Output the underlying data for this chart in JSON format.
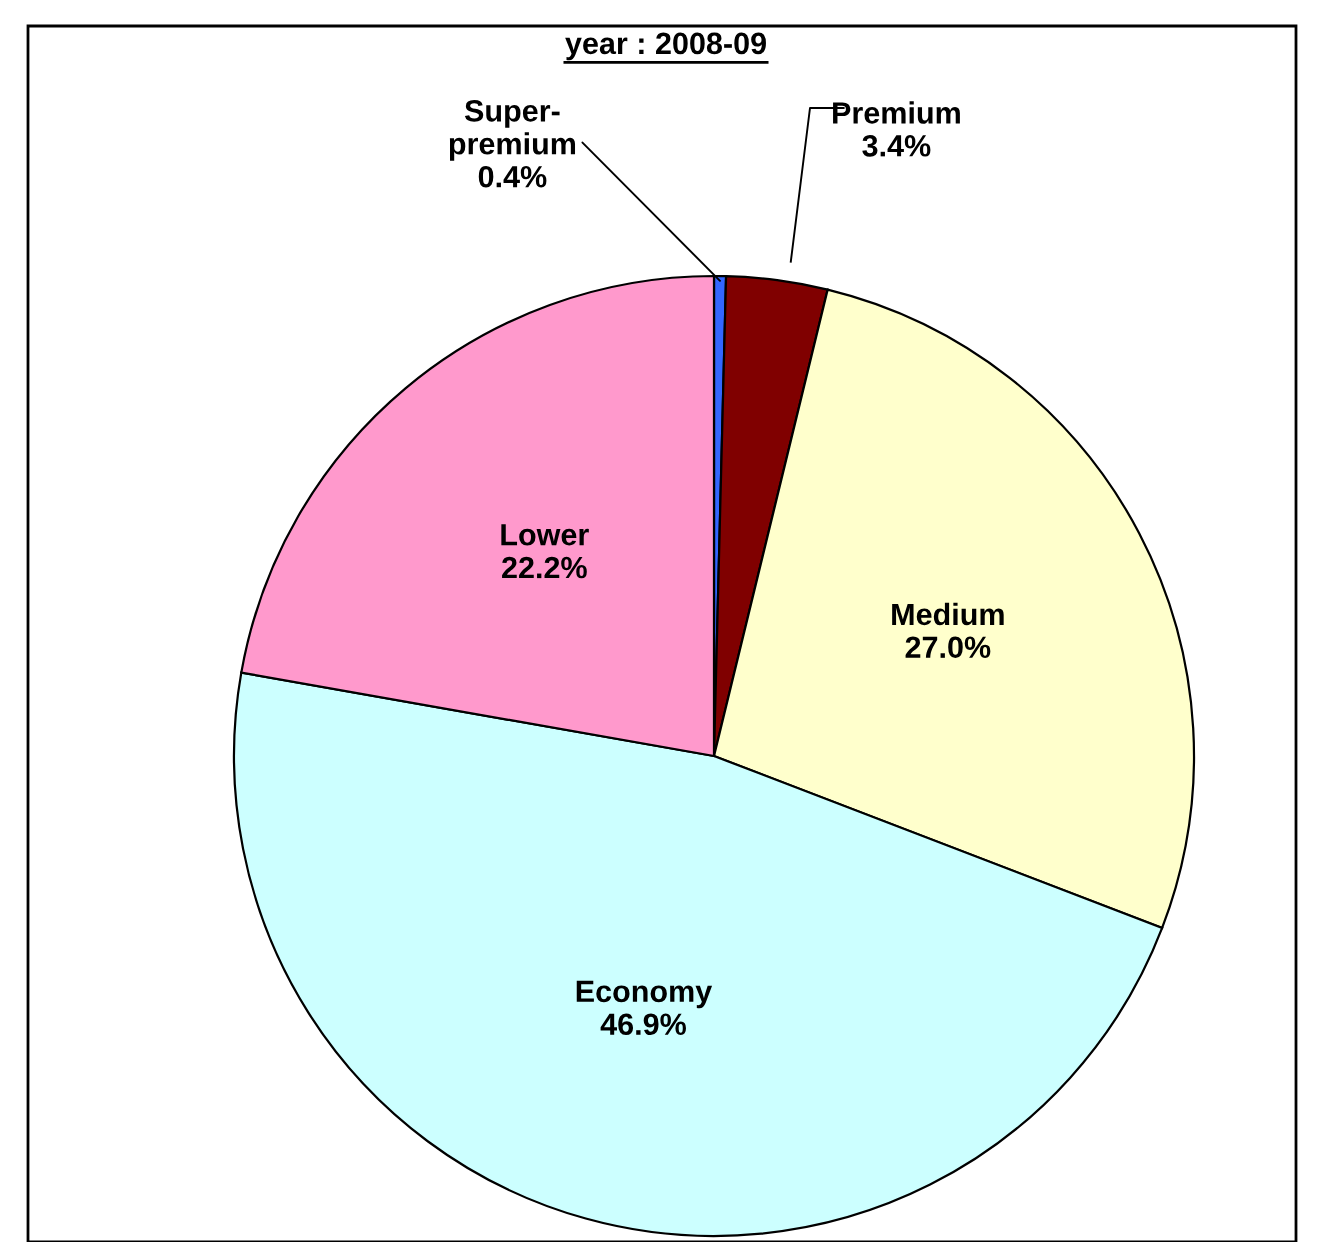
{
  "chart_data": {
    "type": "pie",
    "title": "year : 2008-09",
    "categories": [
      "Super-\npremium",
      "Premium",
      "Medium",
      "Economy",
      "Lower"
    ],
    "values": [
      0.4,
      3.4,
      27.0,
      46.9,
      22.2
    ],
    "colors": [
      "#3366ff",
      "#800000",
      "#ffffcc",
      "#ccffff",
      "#ff99cc"
    ],
    "value_labels": [
      "0.4%",
      "3.4%",
      "27.0%",
      "46.9%",
      "22.2%"
    ],
    "legend": false
  }
}
